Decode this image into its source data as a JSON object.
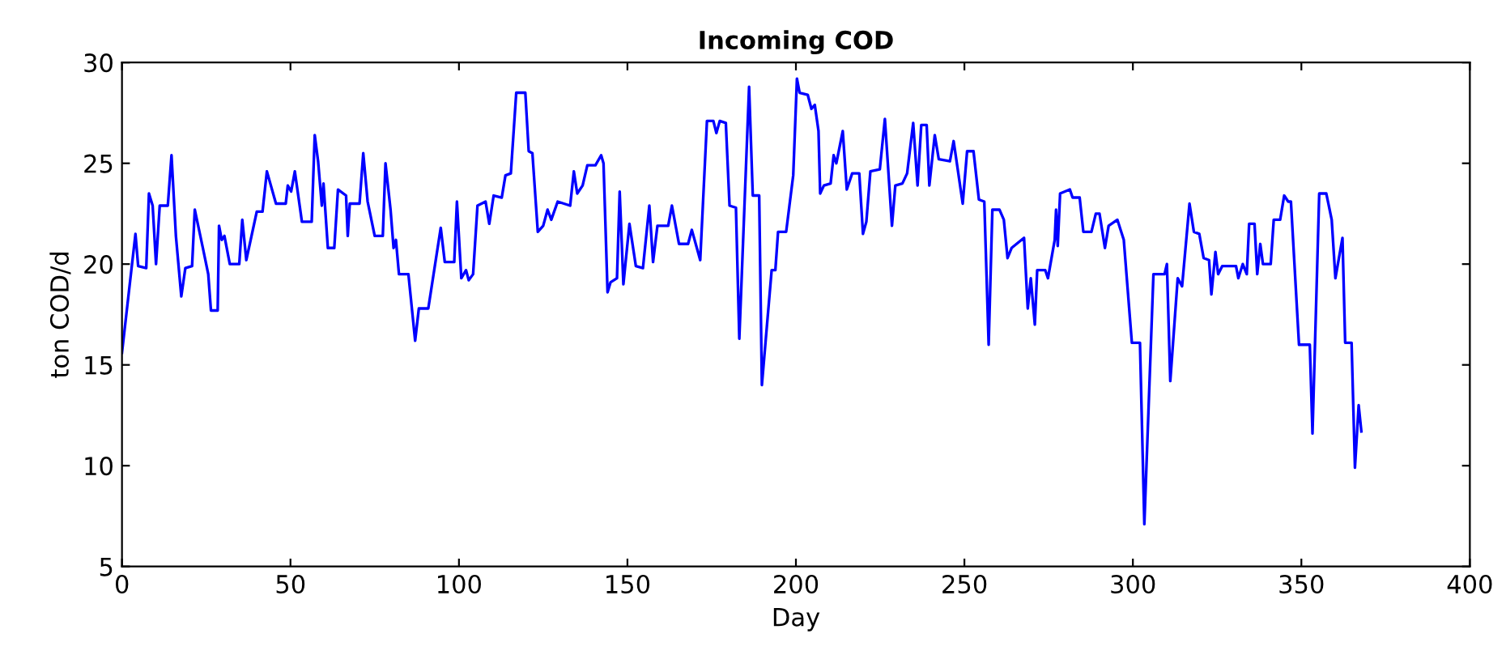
{
  "chart_data": {
    "type": "line",
    "title": "Incoming COD",
    "xlabel": "Day",
    "ylabel": "ton COD/d",
    "xlim": [
      0,
      400
    ],
    "xticks": [
      0,
      50,
      100,
      150,
      200,
      250,
      300,
      350,
      400
    ],
    "ylim": [
      5,
      30
    ],
    "yticks": [
      5,
      10,
      15,
      20,
      25,
      30
    ],
    "grid": false,
    "line_style": "solid",
    "marker": "none",
    "series": [
      {
        "color": "#0000ff",
        "x": [
          0,
          4,
          4.8,
          7.2,
          8,
          9.1,
          10.1,
          11.2,
          13.6,
          14.7,
          16,
          17.6,
          18.8,
          20.8,
          21.6,
          24,
          25.6,
          26.4,
          28.4,
          28.8,
          29.6,
          30.4,
          32,
          34.8,
          35.7,
          36.9,
          40,
          41.7,
          43,
          45.7,
          48.6,
          49.2,
          50.2,
          51.3,
          53.4,
          56.3,
          57.2,
          58.2,
          59.3,
          59.8,
          61.1,
          63,
          64.1,
          66.5,
          67,
          67.6,
          70.5,
          71.6,
          72.9,
          75,
          77.4,
          78.2,
          79.7,
          80.6,
          81.3,
          82.2,
          85,
          87,
          88.1,
          90.9,
          94.6,
          95.8,
          98.6,
          99.4,
          100.7,
          102.1,
          102.9,
          104.2,
          105.5,
          107.9,
          109,
          110.3,
          112.7,
          113.8,
          115.4,
          117,
          119.7,
          120.7,
          121.8,
          123.4,
          125,
          126.3,
          127.4,
          129.3,
          133,
          134.1,
          135.1,
          136.7,
          138.1,
          140.5,
          142.2,
          142.9,
          144.1,
          145,
          146.9,
          147.7,
          148.8,
          150.6,
          152.5,
          154.6,
          156.5,
          157.6,
          158.9,
          162.1,
          163.2,
          165.3,
          168,
          169.1,
          171.6,
          173.6,
          175.5,
          176.4,
          177.4,
          179.2,
          180.3,
          182.2,
          183.2,
          186.1,
          187.2,
          189.1,
          189.9,
          192.8,
          193.9,
          194.7,
          197.1,
          199.2,
          200.3,
          201.1,
          203.5,
          204.6,
          205.6,
          206.7,
          207.2,
          208.3,
          210.3,
          211.2,
          212,
          213.9,
          215.1,
          216.7,
          218.8,
          219.9,
          220.9,
          222.1,
          224.9,
          226.4,
          228.5,
          229.5,
          231.6,
          233,
          234.8,
          236.1,
          237.2,
          238.8,
          239.6,
          241.2,
          242.4,
          245.7,
          246.8,
          249.5,
          250.8,
          252.7,
          254.3,
          255.9,
          257.2,
          258.3,
          260.4,
          261.7,
          262.8,
          264,
          267.7,
          268.8,
          269.7,
          270.9,
          271.6,
          274,
          274.8,
          276.8,
          277.2,
          277.7,
          278.4,
          281.3,
          282.1,
          284.2,
          285.3,
          287.7,
          289,
          290.1,
          291.7,
          292.8,
          295.4,
          297.3,
          299.7,
          302.1,
          303.4,
          306.1,
          309.4,
          310.1,
          311.1,
          313.3,
          314.6,
          316.8,
          318.1,
          319.7,
          321,
          322.6,
          323.3,
          324.5,
          325.3,
          326.5,
          328.6,
          330.6,
          331.3,
          332.6,
          333.8,
          334.5,
          336.1,
          336.9,
          337.8,
          338.6,
          340.9,
          341.8,
          343.7,
          344.9,
          346.1,
          346.9,
          349.3,
          352.5,
          353.3,
          355.3,
          357.4,
          359,
          360.1,
          362.2,
          363,
          364.9,
          365.9,
          367,
          367.8
        ],
        "values": [
          15.6,
          21.5,
          19.9,
          19.8,
          23.5,
          22.9,
          20.0,
          22.9,
          22.9,
          25.4,
          21.4,
          18.4,
          19.8,
          19.9,
          22.7,
          20.8,
          19.5,
          17.7,
          17.7,
          21.9,
          21.2,
          21.4,
          20.0,
          20.0,
          22.2,
          20.2,
          22.6,
          22.6,
          24.6,
          23.0,
          23.0,
          23.9,
          23.6,
          24.6,
          22.1,
          22.1,
          26.4,
          25.1,
          22.9,
          24.0,
          20.8,
          20.8,
          23.7,
          23.4,
          21.4,
          23.0,
          23.0,
          25.5,
          23.1,
          21.4,
          21.4,
          25.0,
          22.7,
          20.8,
          21.2,
          19.5,
          19.5,
          16.2,
          17.8,
          17.8,
          21.8,
          20.1,
          20.1,
          23.1,
          19.3,
          19.7,
          19.2,
          19.5,
          22.9,
          23.1,
          22.0,
          23.4,
          23.3,
          24.4,
          24.5,
          28.5,
          28.5,
          25.6,
          25.5,
          21.6,
          21.9,
          22.7,
          22.2,
          23.1,
          22.9,
          24.6,
          23.5,
          23.9,
          24.9,
          24.9,
          25.4,
          25.0,
          18.6,
          19.1,
          19.3,
          23.6,
          19.0,
          22.0,
          19.9,
          19.8,
          22.9,
          20.1,
          21.9,
          21.9,
          22.9,
          21.0,
          21.0,
          21.7,
          20.2,
          27.1,
          27.1,
          26.5,
          27.1,
          27.0,
          22.9,
          22.8,
          16.3,
          28.8,
          23.4,
          23.4,
          14.0,
          19.7,
          19.7,
          21.6,
          21.6,
          24.4,
          29.2,
          28.5,
          28.4,
          27.7,
          27.9,
          26.6,
          23.5,
          23.9,
          24.0,
          25.4,
          25.0,
          26.6,
          23.7,
          24.5,
          24.5,
          21.5,
          22.1,
          24.6,
          24.7,
          27.2,
          21.9,
          23.9,
          24.0,
          24.5,
          27.0,
          23.9,
          26.9,
          26.9,
          23.9,
          26.4,
          25.2,
          25.1,
          26.1,
          23.0,
          25.6,
          25.6,
          23.2,
          23.1,
          16.0,
          22.7,
          22.7,
          22.2,
          20.3,
          20.8,
          21.3,
          17.8,
          19.3,
          17.0,
          19.7,
          19.7,
          19.3,
          21.2,
          22.7,
          20.9,
          23.5,
          23.7,
          23.3,
          23.3,
          21.6,
          21.6,
          22.5,
          22.5,
          20.8,
          21.9,
          22.2,
          21.2,
          16.1,
          16.1,
          7.1,
          19.5,
          19.5,
          20.0,
          14.2,
          19.3,
          18.9,
          23.0,
          21.6,
          21.5,
          20.3,
          20.2,
          18.5,
          20.6,
          19.5,
          19.9,
          19.9,
          19.9,
          19.3,
          20.0,
          19.5,
          22.0,
          22.0,
          19.5,
          21.0,
          20.0,
          20.0,
          22.2,
          22.2,
          23.4,
          23.1,
          23.1,
          16.0,
          16.0,
          11.6,
          23.5,
          23.5,
          22.2,
          19.3,
          21.3,
          16.1,
          16.1,
          9.9,
          13.0,
          11.7
        ]
      }
    ]
  }
}
